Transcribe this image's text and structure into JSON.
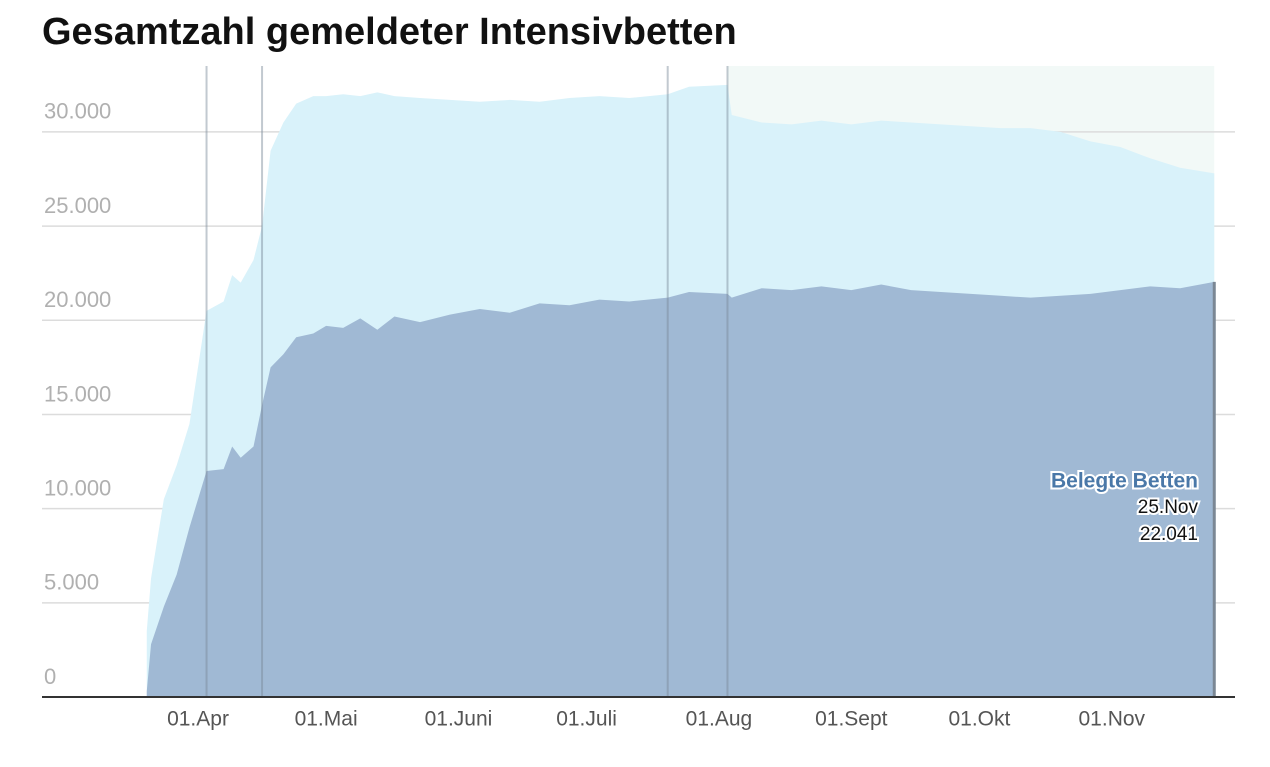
{
  "chart_data": {
    "type": "area",
    "title": "Gesamtzahl gemeldeter Intensivbetten",
    "x": [
      "03-20",
      "03-21",
      "03-24",
      "03-27",
      "03-30",
      "04-01",
      "04-03",
      "04-07",
      "04-09",
      "04-11",
      "04-14",
      "04-16",
      "04-18",
      "04-21",
      "04-24",
      "04-28",
      "05-01",
      "05-05",
      "05-09",
      "05-13",
      "05-17",
      "05-23",
      "05-30",
      "06-06",
      "06-13",
      "06-20",
      "06-27",
      "07-04",
      "07-11",
      "07-20",
      "07-25",
      "08-03",
      "08-04",
      "08-11",
      "08-18",
      "08-25",
      "09-01",
      "09-08",
      "09-15",
      "09-22",
      "09-29",
      "10-06",
      "10-13",
      "10-20",
      "10-27",
      "11-03",
      "11-10",
      "11-17",
      "11-25"
    ],
    "series": [
      {
        "color": "#d9f2fa",
        "values": [
          3500,
          6300,
          10500,
          12300,
          14500,
          17500,
          20500,
          21000,
          22400,
          22000,
          23200,
          25000,
          29000,
          30500,
          31500,
          31900,
          31900,
          32000,
          31900,
          32100,
          31900,
          31800,
          31700,
          31600,
          31700,
          31600,
          31800,
          31900,
          31800,
          32000,
          32400,
          32500,
          30900,
          30500,
          30400,
          30600,
          30400,
          30600,
          30500,
          30400,
          30300,
          30200,
          30200,
          30000,
          29500,
          29200,
          28600,
          28100,
          27800
        ]
      },
      {
        "name": "Belegte Betten",
        "color": "#a0b9d4",
        "values": [
          300,
          2800,
          4800,
          6500,
          9000,
          10500,
          12000,
          12100,
          13300,
          12700,
          13300,
          15500,
          17500,
          18200,
          19100,
          19300,
          19700,
          19600,
          20100,
          19500,
          20200,
          19900,
          20300,
          20600,
          20400,
          20900,
          20800,
          21100,
          21000,
          21200,
          21500,
          21400,
          21200,
          21700,
          21600,
          21800,
          21600,
          21900,
          21600,
          21500,
          21400,
          21300,
          21200,
          21300,
          21400,
          21600,
          21800,
          21700,
          22041
        ]
      }
    ],
    "annotation": {
      "date": "25.Nov",
      "value_label": "22.041"
    },
    "vlines": [
      "04-03",
      "04-16",
      "07-20",
      "08-03"
    ],
    "ylim": [
      0,
      33500
    ],
    "yticks": [
      0,
      {
        "value": 5000,
        "label": "5.000"
      },
      {
        "value": 10000,
        "label": "10.000"
      },
      {
        "value": 15000,
        "label": "15.000"
      },
      {
        "value": 20000,
        "label": "20.000"
      },
      {
        "value": 25000,
        "label": "25.000"
      },
      {
        "value": 30000,
        "label": "30.000"
      }
    ],
    "xticks": [
      {
        "value": "04-01",
        "label": "01.Apr"
      },
      {
        "value": "05-01",
        "label": "01.Mai"
      },
      {
        "value": "06-01",
        "label": "01.Juni"
      },
      {
        "value": "07-01",
        "label": "01.Juli"
      },
      {
        "value": "08-01",
        "label": "01.Aug"
      },
      {
        "value": "09-01",
        "label": "01.Sept"
      },
      {
        "value": "10-01",
        "label": "01.Okt"
      },
      {
        "value": "11-01",
        "label": "01.Nov"
      }
    ],
    "grid": true
  }
}
